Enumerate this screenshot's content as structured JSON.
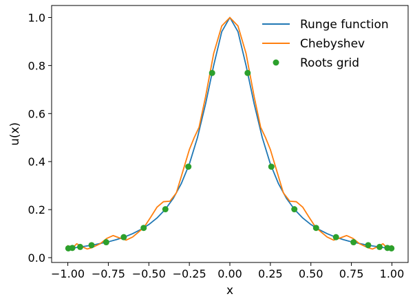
{
  "chart_data": {
    "type": "line",
    "xlabel": "x",
    "ylabel": "u(x)",
    "xlim": [
      -1.1,
      1.1
    ],
    "ylim": [
      -0.02,
      1.05
    ],
    "x_ticks": [
      -1.0,
      -0.75,
      -0.5,
      -0.25,
      0.0,
      0.25,
      0.5,
      0.75,
      1.0
    ],
    "x_tick_labels": [
      "−1.00",
      "−0.75",
      "−0.50",
      "−0.25",
      "0.00",
      "0.25",
      "0.50",
      "0.75",
      "1.00"
    ],
    "y_ticks": [
      0.0,
      0.2,
      0.4,
      0.6,
      0.8,
      1.0
    ],
    "y_tick_labels": [
      "0.0",
      "0.2",
      "0.4",
      "0.6",
      "0.8",
      "1.0"
    ],
    "grid": false,
    "legend_position": "top-right",
    "series": [
      {
        "name": "Runge function",
        "kind": "line",
        "color": "#1f77b4",
        "x": [
          -1.0,
          -0.95,
          -0.9,
          -0.85,
          -0.8,
          -0.75,
          -0.7,
          -0.65,
          -0.6,
          -0.55,
          -0.5,
          -0.45,
          -0.4,
          -0.35,
          -0.3,
          -0.25,
          -0.2,
          -0.15,
          -0.1,
          -0.05,
          0.0,
          0.05,
          0.1,
          0.15,
          0.2,
          0.25,
          0.3,
          0.35,
          0.4,
          0.45,
          0.5,
          0.55,
          0.6,
          0.65,
          0.7,
          0.75,
          0.8,
          0.85,
          0.9,
          0.95,
          1.0
        ],
        "y": [
          0.038,
          0.042,
          0.047,
          0.052,
          0.059,
          0.066,
          0.075,
          0.086,
          0.1,
          0.117,
          0.138,
          0.165,
          0.2,
          0.246,
          0.308,
          0.39,
          0.5,
          0.64,
          0.8,
          0.941,
          1.0,
          0.941,
          0.8,
          0.64,
          0.5,
          0.39,
          0.308,
          0.246,
          0.2,
          0.165,
          0.138,
          0.117,
          0.1,
          0.086,
          0.075,
          0.066,
          0.059,
          0.052,
          0.047,
          0.042,
          0.038
        ]
      },
      {
        "name": "Chebyshev",
        "kind": "line",
        "color": "#ff7f0e",
        "x": [
          -1.0,
          -0.985,
          -0.97,
          -0.945,
          -0.91,
          -0.88,
          -0.85,
          -0.8,
          -0.76,
          -0.72,
          -0.68,
          -0.64,
          -0.6,
          -0.57,
          -0.53,
          -0.49,
          -0.45,
          -0.41,
          -0.37,
          -0.33,
          -0.29,
          -0.25,
          -0.22,
          -0.19,
          -0.15,
          -0.1,
          -0.05,
          0.0,
          0.05,
          0.1,
          0.15,
          0.19,
          0.22,
          0.25,
          0.29,
          0.33,
          0.37,
          0.41,
          0.45,
          0.49,
          0.53,
          0.57,
          0.6,
          0.64,
          0.68,
          0.72,
          0.76,
          0.8,
          0.85,
          0.88,
          0.91,
          0.945,
          0.97,
          0.985,
          1.0
        ],
        "y": [
          0.05,
          0.034,
          0.04,
          0.058,
          0.045,
          0.036,
          0.042,
          0.058,
          0.08,
          0.092,
          0.082,
          0.073,
          0.086,
          0.103,
          0.126,
          0.167,
          0.21,
          0.233,
          0.235,
          0.27,
          0.36,
          0.45,
          0.5,
          0.543,
          0.67,
          0.85,
          0.965,
          1.0,
          0.965,
          0.85,
          0.67,
          0.543,
          0.5,
          0.45,
          0.36,
          0.27,
          0.235,
          0.233,
          0.21,
          0.167,
          0.126,
          0.103,
          0.086,
          0.073,
          0.082,
          0.092,
          0.08,
          0.058,
          0.042,
          0.036,
          0.045,
          0.058,
          0.04,
          0.034,
          0.05
        ]
      },
      {
        "name": "Roots grid",
        "kind": "scatter",
        "color": "#2ca02c",
        "x": [
          -0.9969,
          -0.9721,
          -0.9239,
          -0.8536,
          -0.763,
          -0.6549,
          -0.532,
          -0.398,
          -0.2561,
          -0.1096,
          0.1096,
          0.2561,
          0.398,
          0.532,
          0.6549,
          0.763,
          0.8536,
          0.9239,
          0.9721,
          0.9969
        ],
        "y": [
          0.0387,
          0.0406,
          0.0446,
          0.052,
          0.0643,
          0.0854,
          0.1238,
          0.2016,
          0.3788,
          0.769,
          0.769,
          0.3788,
          0.2016,
          0.1238,
          0.0854,
          0.0643,
          0.052,
          0.0446,
          0.0406,
          0.0387
        ]
      }
    ]
  }
}
